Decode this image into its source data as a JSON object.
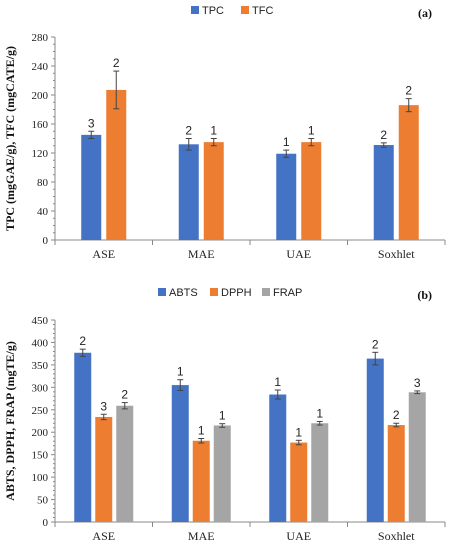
{
  "colors": {
    "blue": "#4472c4",
    "orange": "#ed7d31",
    "gray": "#a5a5a5"
  },
  "chart_data": [
    {
      "type": "bar",
      "panel_label": "(a)",
      "ylabel": "TPC (mgGAE/g), TFC (mgCATE/g)",
      "ylim": [
        0,
        280
      ],
      "yticks": [
        0,
        40,
        80,
        120,
        160,
        200,
        240,
        280
      ],
      "grid": false,
      "legend_position": "top-center",
      "categories": [
        "ASE",
        "MAE",
        "UAE",
        "Soxhlet"
      ],
      "series": [
        {
          "name": "TPC",
          "color": "#4472c4",
          "values": [
            145,
            132,
            119,
            131
          ],
          "errors": [
            5,
            8,
            5,
            3
          ],
          "labels": [
            "3",
            "2",
            "1",
            "2"
          ]
        },
        {
          "name": "TFC",
          "color": "#ed7d31",
          "values": [
            207,
            135,
            135,
            186
          ],
          "errors": [
            26,
            5,
            5,
            9
          ],
          "labels": [
            "2",
            "1",
            "1",
            "2"
          ]
        }
      ]
    },
    {
      "type": "bar",
      "panel_label": "(b)",
      "ylabel": "ABTS, DPPH, FRAP (mgTE/g)",
      "ylim": [
        0,
        450
      ],
      "yticks": [
        0,
        50,
        100,
        150,
        200,
        250,
        300,
        350,
        400,
        450
      ],
      "grid": false,
      "legend_position": "top-center",
      "categories": [
        "ASE",
        "MAE",
        "UAE",
        "Soxhlet"
      ],
      "series": [
        {
          "name": "ABTS",
          "color": "#4472c4",
          "values": [
            377,
            305,
            284,
            364
          ],
          "errors": [
            8,
            12,
            10,
            14
          ],
          "labels": [
            "2",
            "1",
            "1",
            "2"
          ]
        },
        {
          "name": "DPPH",
          "color": "#ed7d31",
          "values": [
            234,
            181,
            177,
            216
          ],
          "errors": [
            6,
            5,
            5,
            4
          ],
          "labels": [
            "3",
            "1",
            "1",
            "2"
          ]
        },
        {
          "name": "FRAP",
          "color": "#a5a5a5",
          "values": [
            259,
            215,
            220,
            289
          ],
          "errors": [
            7,
            4,
            4,
            3
          ],
          "labels": [
            "2",
            "1",
            "1",
            "3"
          ]
        }
      ]
    }
  ]
}
